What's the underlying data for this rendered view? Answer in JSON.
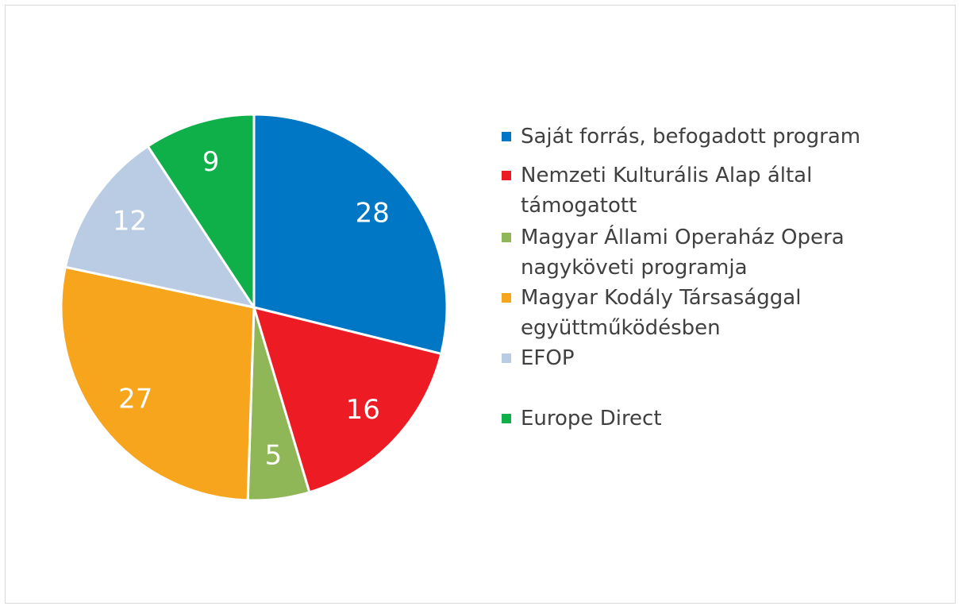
{
  "chart_data": {
    "type": "pie",
    "categories": [
      "Saját forrás, befogadott program",
      "Nemzeti Kulturális Alap által támogatott",
      "Magyar Állami Operaház Opera nagyköveti programja",
      "Magyar Kodály Társasággal együttműködésben",
      "EFOP",
      "Europe Direct"
    ],
    "values": [
      28,
      16,
      5,
      27,
      12,
      9
    ],
    "colors": [
      "#0077c4",
      "#ed1c24",
      "#8fb657",
      "#f7a51c",
      "#b9cce4",
      "#0fb04a"
    ],
    "legend": "right"
  }
}
